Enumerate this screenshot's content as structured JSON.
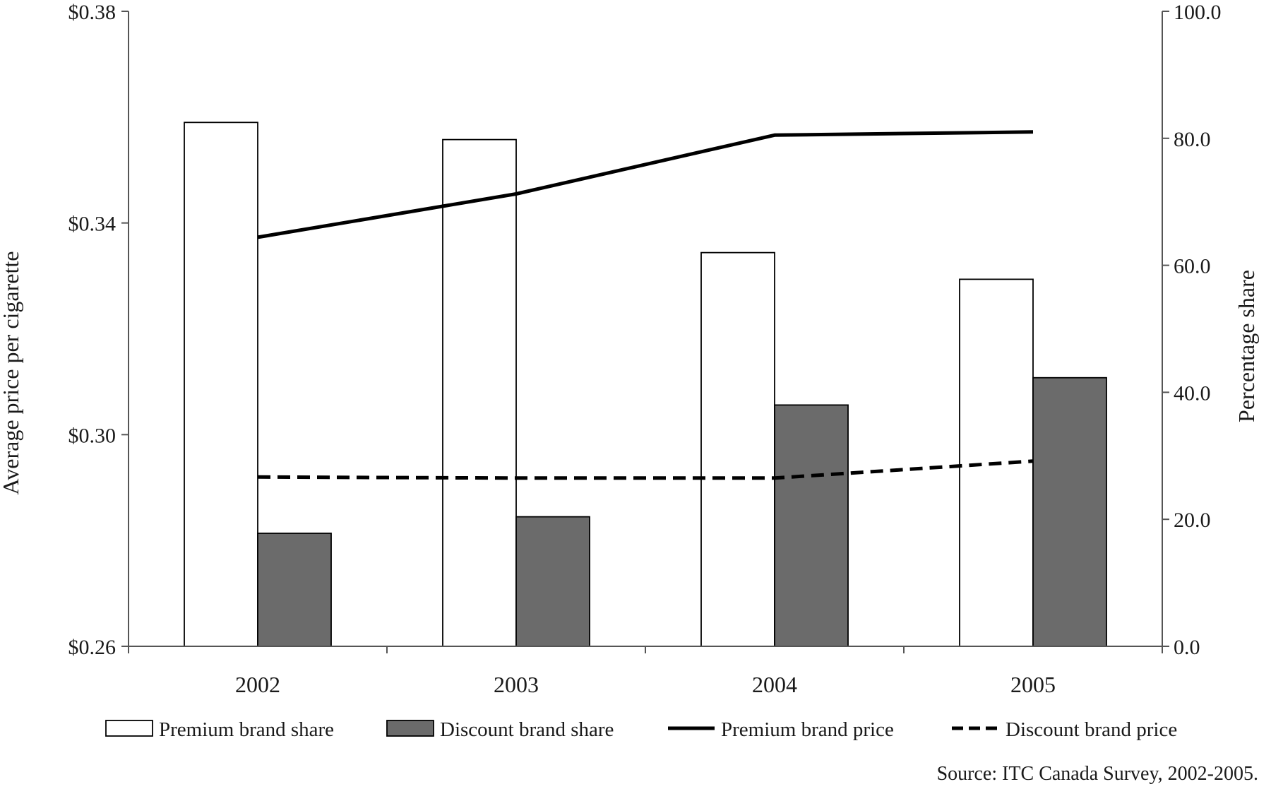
{
  "chart_data": {
    "type": "bar",
    "categories": [
      "2002",
      "2003",
      "2004",
      "2005"
    ],
    "series": [
      {
        "name": "Premium brand share",
        "type": "bar",
        "axis": "right",
        "color": "#ffffff",
        "values": [
          82.5,
          79.8,
          62.0,
          57.8
        ]
      },
      {
        "name": "Discount brand share",
        "type": "bar",
        "axis": "right",
        "color": "#6b6b6b",
        "values": [
          17.8,
          20.4,
          38.0,
          42.3
        ]
      },
      {
        "name": "Premium brand price",
        "type": "line",
        "axis": "left",
        "color": "#000000",
        "style": "solid",
        "values": [
          0.3373,
          0.3455,
          0.3566,
          0.3572
        ]
      },
      {
        "name": "Discount brand price",
        "type": "line",
        "axis": "left",
        "color": "#000000",
        "style": "dashed",
        "values": [
          0.292,
          0.2918,
          0.2918,
          0.295
        ]
      }
    ],
    "left_axis": {
      "label": "Average price per cigarette",
      "range": [
        0.26,
        0.38
      ],
      "ticks": [
        0.26,
        0.3,
        0.34,
        0.38
      ],
      "tick_labels": [
        "$0.26",
        "$0.30",
        "$0.34",
        "$0.38"
      ]
    },
    "right_axis": {
      "label": "Percentage share",
      "range": [
        0,
        100
      ],
      "ticks": [
        0,
        20,
        40,
        60,
        80,
        100
      ],
      "tick_labels": [
        "0.0",
        "20.0",
        "40.0",
        "60.0",
        "80.0",
        "100.0"
      ]
    },
    "grid": false,
    "legend": {
      "position": "bottom",
      "entries": [
        "Premium brand share",
        "Discount brand share",
        "Premium brand price",
        "Discount brand price"
      ]
    },
    "source": "Source: ITC Canada Survey, 2002-2005."
  }
}
